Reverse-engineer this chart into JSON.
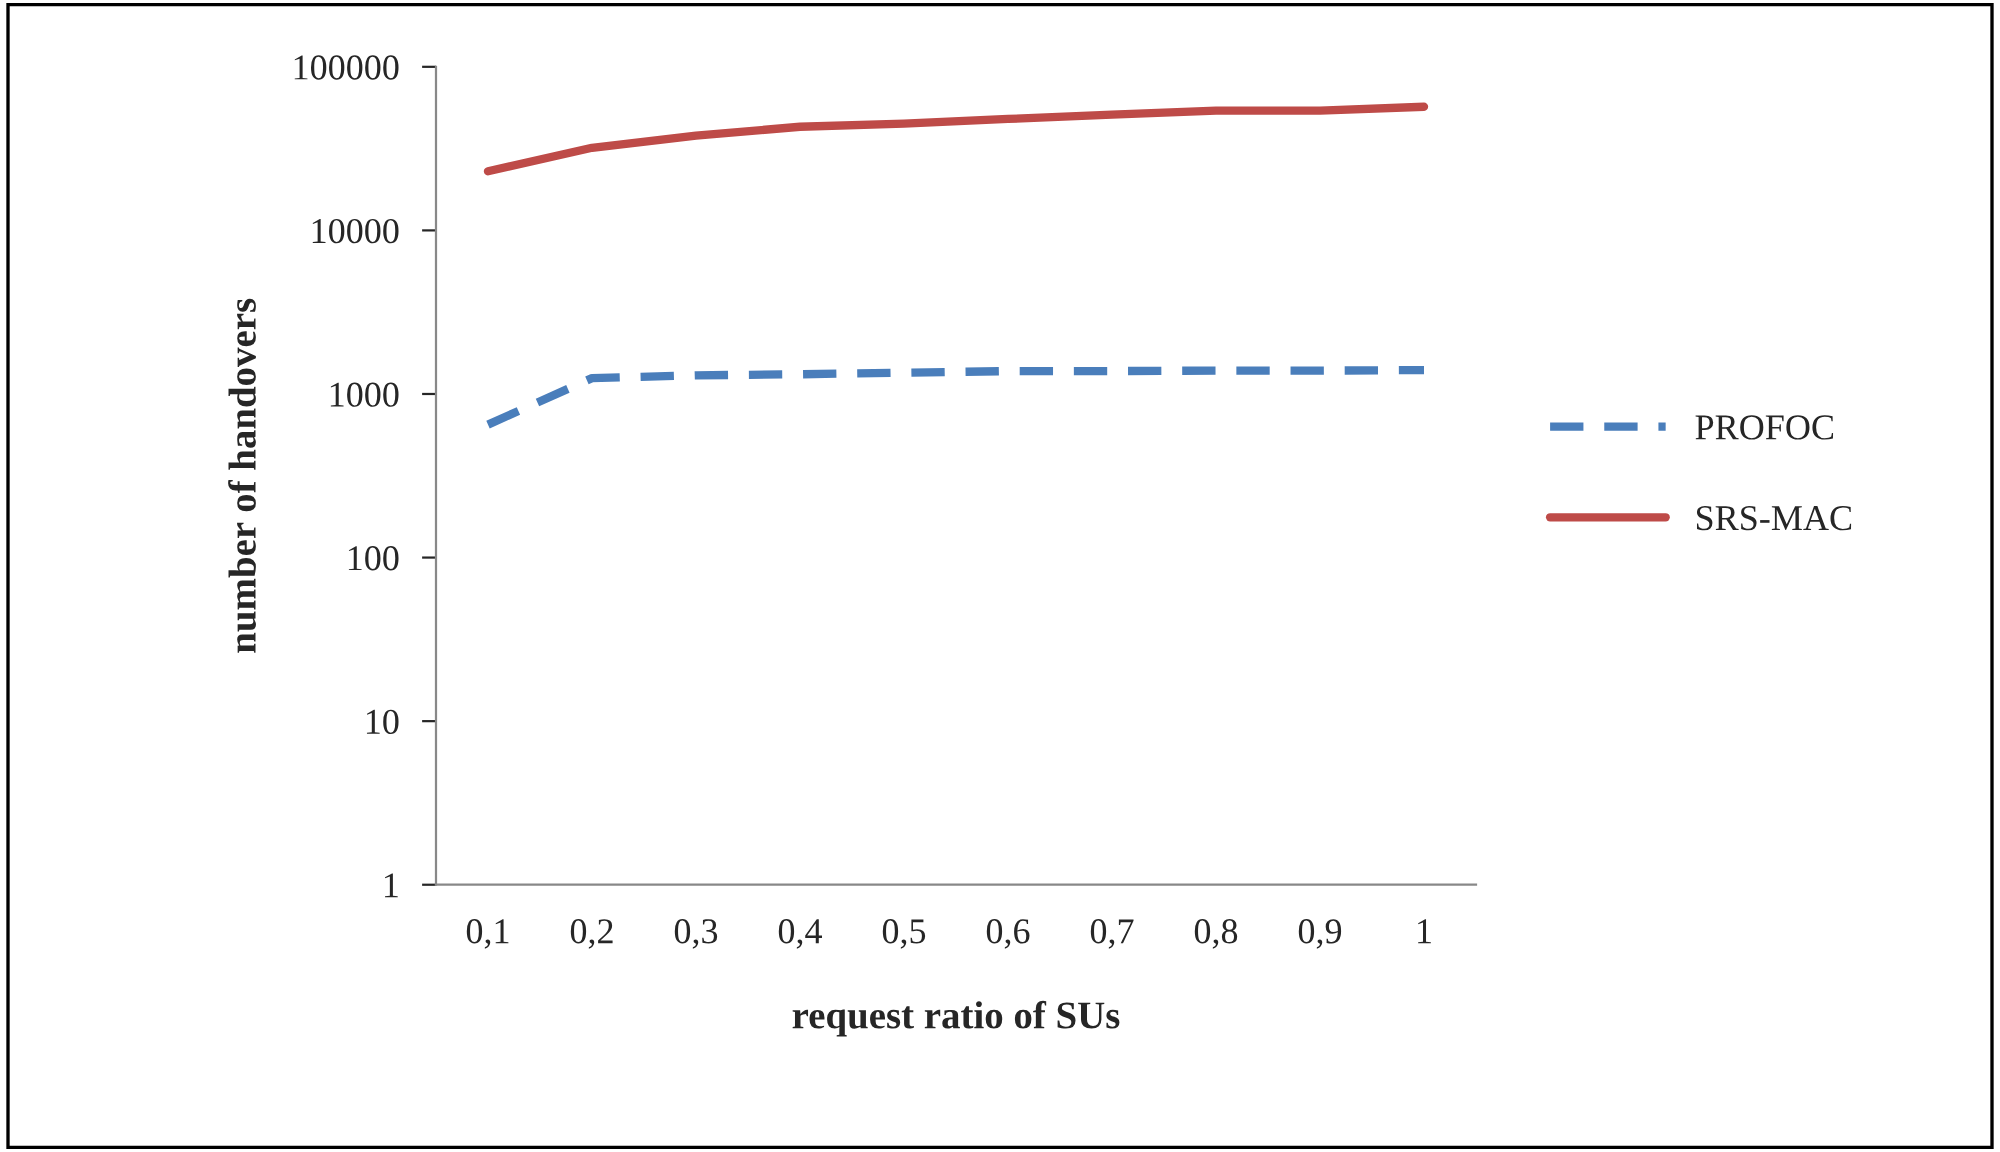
{
  "chart_data": {
    "type": "line",
    "xlabel": "request ratio of SUs",
    "ylabel": "number of handovers",
    "categories": [
      "0,1",
      "0,2",
      "0,3",
      "0,4",
      "0,5",
      "0,6",
      "0,7",
      "0,8",
      "0,9",
      "1"
    ],
    "series": [
      {
        "name": "PROFOC",
        "color": "#4a7ebb",
        "line_style": "dashed",
        "values": [
          650,
          1250,
          1300,
          1320,
          1350,
          1380,
          1380,
          1390,
          1390,
          1400
        ]
      },
      {
        "name": "SRS-MAC",
        "color": "#be4b48",
        "line_style": "solid",
        "values": [
          23000,
          32000,
          38000,
          43000,
          45000,
          48000,
          51000,
          54000,
          54000,
          57000
        ]
      }
    ],
    "log": "y",
    "ylim": [
      1,
      100000
    ],
    "yticks": [
      1,
      10,
      100,
      1000,
      10000,
      100000
    ],
    "grid": false,
    "legend": "right",
    "marker": "none"
  }
}
